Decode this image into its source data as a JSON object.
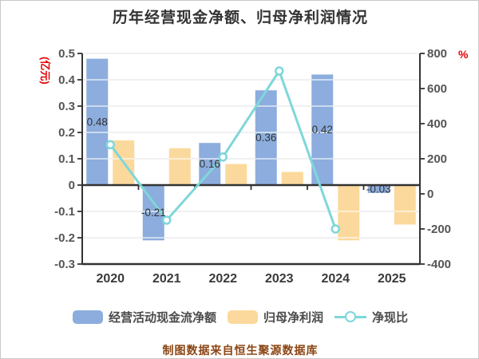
{
  "title": "历年经营现金净额、归母净利润情况",
  "caption": "制图数据来自恒生聚源数据库",
  "colors": {
    "title": "#333333",
    "tick_label": "#555555",
    "year_label": "#3a3a3a",
    "value_label": "#333333",
    "axis_line": "#333333",
    "gridline": "#cccccc",
    "gridline_over_bar": "rgba(255,255,255,0.75)",
    "unit_label": "#e60000",
    "caption": "#8b4513",
    "legend_text": "#4a4a4a",
    "background": "#ffffff"
  },
  "chart_data": {
    "type": "combo",
    "categories": [
      "2020",
      "2021",
      "2022",
      "2023",
      "2024",
      "2025"
    ],
    "series": [
      {
        "name": "经营活动现金流净额",
        "type": "bar",
        "axis": "left",
        "color": "#8caddd",
        "values": [
          0.48,
          -0.21,
          0.16,
          0.36,
          0.42,
          -0.03
        ],
        "labels": [
          "0.48",
          "-0.21",
          "0.16",
          "0.36",
          "0.42",
          "-0.03"
        ]
      },
      {
        "name": "归母净利润",
        "type": "bar",
        "axis": "left",
        "color": "#fbd99c",
        "values": [
          0.17,
          0.14,
          0.08,
          0.05,
          -0.21,
          -0.15
        ],
        "labels": null
      },
      {
        "name": "净现比",
        "type": "line",
        "axis": "right",
        "color": "#7ed7da",
        "marker": "circle",
        "values": [
          280,
          -150,
          210,
          700,
          -200,
          null
        ]
      }
    ],
    "left_axis": {
      "unit": "(亿元)",
      "min": -0.3,
      "max": 0.5,
      "step": 0.1
    },
    "right_axis": {
      "unit": "%",
      "min": -400,
      "max": 800,
      "step": 200
    },
    "grid": true,
    "legend_position": "bottom"
  }
}
